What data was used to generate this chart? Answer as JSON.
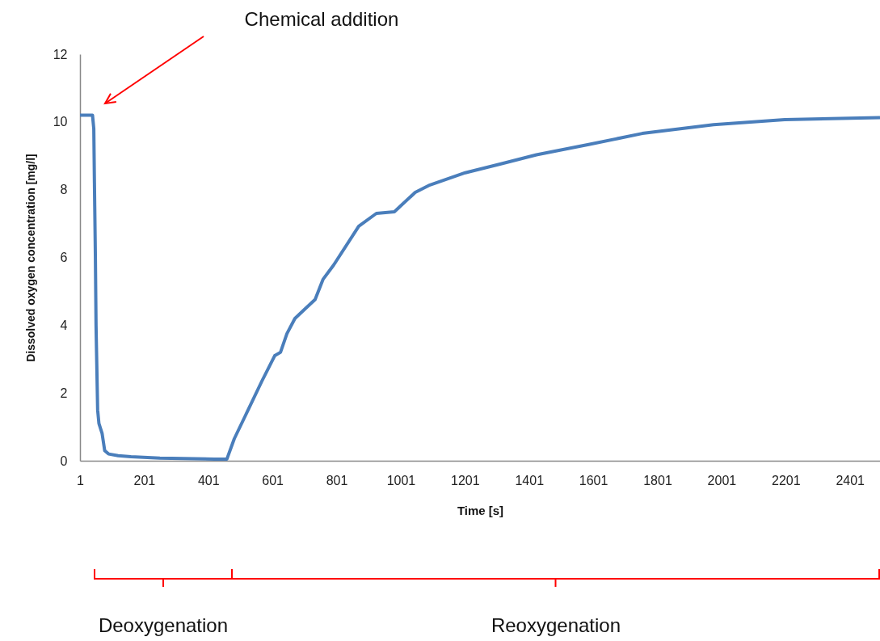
{
  "chart_data": {
    "type": "line",
    "xlabel": "Time [s]",
    "ylabel": "Dissolved oxygen concentration [mg/l]",
    "xlim": [
      1,
      2495
    ],
    "xticks": [
      1,
      201,
      401,
      601,
      801,
      1001,
      1201,
      1401,
      1601,
      1801,
      2001,
      2201,
      2401
    ],
    "ylim": [
      0,
      12
    ],
    "yticks": [
      0,
      2,
      4,
      6,
      8,
      10,
      12
    ],
    "series": [
      {
        "color": "#4a7ebb",
        "x": [
          1,
          40,
          44,
          46,
          49,
          51,
          54,
          56,
          60,
          70,
          78,
          90,
          120,
          160,
          250,
          420,
          459,
          482,
          515,
          568,
          608,
          626,
          646,
          671,
          699,
          734,
          759,
          792,
          870,
          925,
          981,
          1046,
          1092,
          1202,
          1313,
          1424,
          1590,
          1754,
          1976,
          2198,
          2495
        ],
        "values": [
          10.2,
          10.2,
          9.8,
          8.2,
          6.0,
          4.0,
          2.5,
          1.5,
          1.1,
          0.8,
          0.3,
          0.2,
          0.15,
          0.12,
          0.08,
          0.05,
          0.05,
          0.65,
          1.3,
          2.35,
          3.1,
          3.2,
          3.75,
          4.2,
          4.45,
          4.76,
          5.36,
          5.78,
          6.92,
          7.3,
          7.35,
          7.92,
          8.14,
          8.5,
          8.76,
          9.03,
          9.34,
          9.66,
          9.92,
          10.07,
          10.13
        ]
      }
    ],
    "annotations": [
      "Chemical addition",
      "Deoxygenation",
      "Reoxygenation"
    ]
  }
}
